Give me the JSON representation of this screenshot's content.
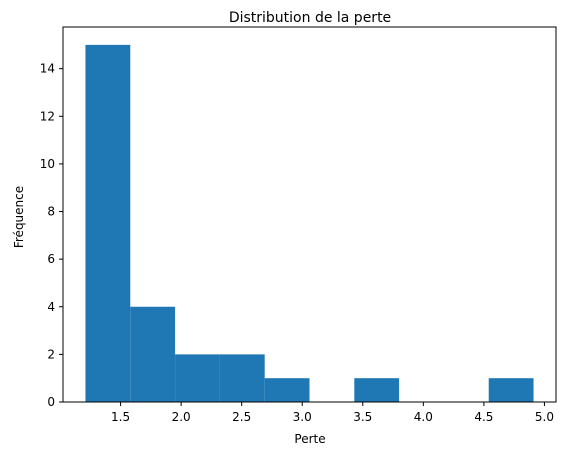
{
  "chart_data": {
    "type": "bar",
    "title": "Distribution de la perte",
    "xlabel": "Perte",
    "ylabel": "Fréquence",
    "bins": [
      {
        "start": 1.21,
        "end": 1.58,
        "count": 15
      },
      {
        "start": 1.58,
        "end": 1.95,
        "count": 4
      },
      {
        "start": 1.95,
        "end": 2.32,
        "count": 2
      },
      {
        "start": 2.32,
        "end": 2.69,
        "count": 2
      },
      {
        "start": 2.69,
        "end": 3.06,
        "count": 1
      },
      {
        "start": 3.06,
        "end": 3.43,
        "count": 0
      },
      {
        "start": 3.43,
        "end": 3.8,
        "count": 1
      },
      {
        "start": 3.8,
        "end": 4.17,
        "count": 0
      },
      {
        "start": 4.17,
        "end": 4.54,
        "count": 0
      },
      {
        "start": 4.54,
        "end": 4.91,
        "count": 1
      }
    ],
    "xlim": [
      1.0245,
      5.0955
    ],
    "ylim": [
      0,
      15.75
    ],
    "xticks": [
      1.5,
      2.0,
      2.5,
      3.0,
      3.5,
      4.0,
      4.5,
      5.0
    ],
    "xtick_labels": [
      "1.5",
      "2.0",
      "2.5",
      "3.0",
      "3.5",
      "4.0",
      "4.5",
      "5.0"
    ],
    "yticks": [
      0,
      2,
      4,
      6,
      8,
      10,
      12,
      14
    ],
    "ytick_labels": [
      "0",
      "2",
      "4",
      "6",
      "8",
      "10",
      "12",
      "14"
    ],
    "bar_color": "#1f77b4",
    "grid": false,
    "legend": "none"
  }
}
